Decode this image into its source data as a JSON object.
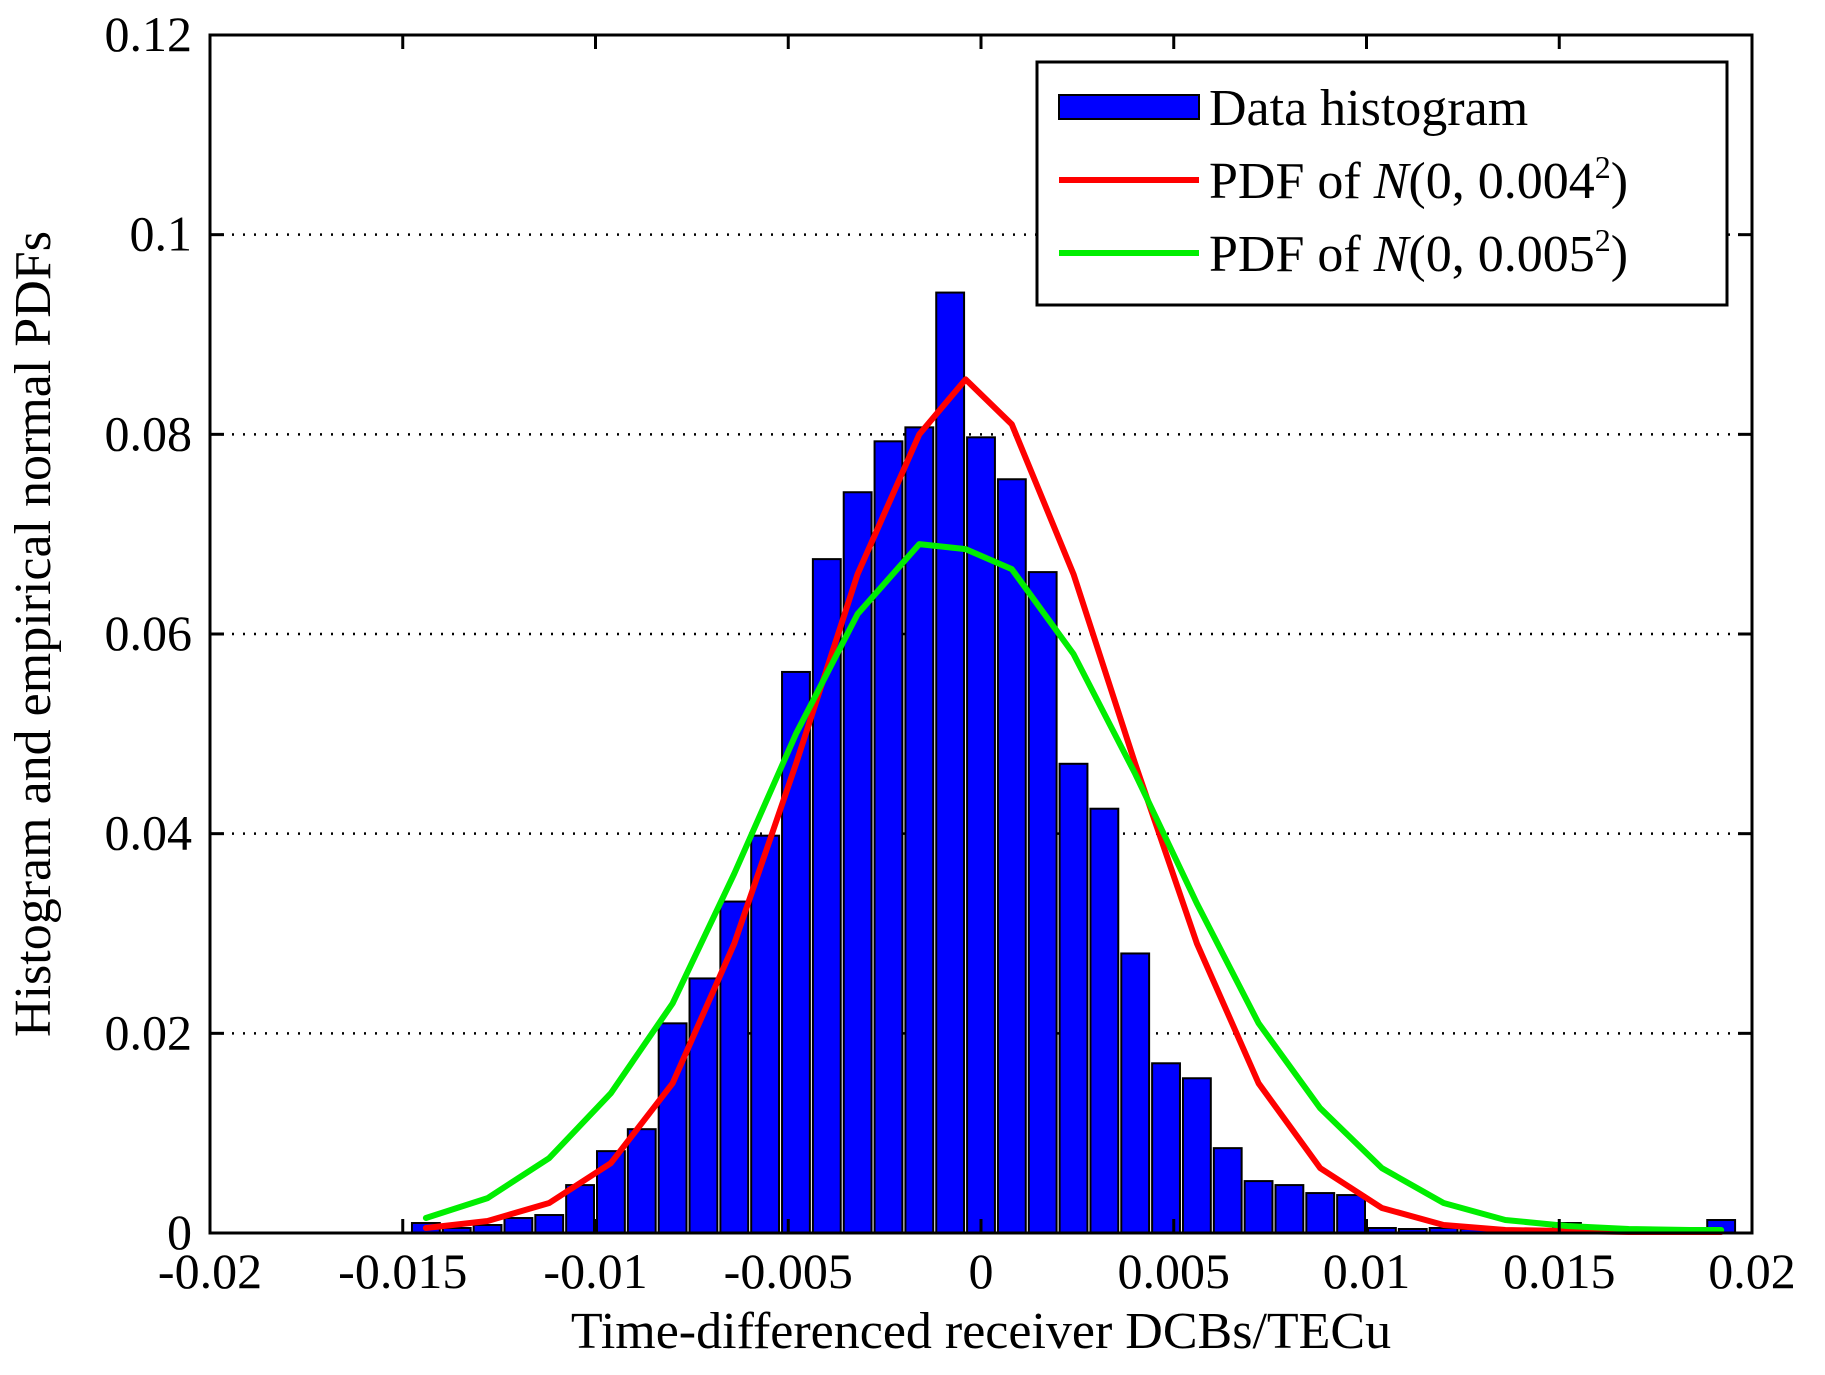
{
  "chart_data": {
    "type": "bar",
    "title": "",
    "xlabel": "Time-differenced receiver DCBs/TECu",
    "ylabel": "Histogram and empirical normal PDFs",
    "xlim": [
      -0.02,
      0.02
    ],
    "ylim": [
      0,
      0.12
    ],
    "xticks": [
      "-0.02",
      "-0.015",
      "-0.01",
      "-0.005",
      "0",
      "0.005",
      "0.01",
      "0.015",
      "0.02"
    ],
    "yticks": [
      "0",
      "0.02",
      "0.04",
      "0.06",
      "0.08",
      "0.1",
      "0.12"
    ],
    "grid": "y-dotted",
    "legend_position": "top-right",
    "histogram": {
      "name": "Data histogram",
      "color": "#0000ff",
      "edge_color": "#000000",
      "bin_width": 0.0008,
      "bin_centers": [
        -0.0144,
        -0.0136,
        -0.0128,
        -0.012,
        -0.0112,
        -0.0104,
        -0.0096,
        -0.0088,
        -0.008,
        -0.0072,
        -0.0064,
        -0.0056,
        -0.0048,
        -0.004,
        -0.0032,
        -0.0024,
        -0.0016,
        -0.0008,
        0.0,
        0.0008,
        0.0016,
        0.0024,
        0.0032,
        0.004,
        0.0048,
        0.0056,
        0.0064,
        0.0072,
        0.008,
        0.0088,
        0.0096,
        0.0104,
        0.0112,
        0.012,
        0.0128,
        0.0136,
        0.0144,
        0.0152,
        0.016,
        0.0168,
        0.0176,
        0.0184,
        0.0192
      ],
      "values": [
        0.001,
        0.0005,
        0.0008,
        0.0015,
        0.0018,
        0.0048,
        0.0082,
        0.0104,
        0.021,
        0.0255,
        0.0332,
        0.0398,
        0.0562,
        0.0675,
        0.0742,
        0.0793,
        0.0807,
        0.0942,
        0.0797,
        0.0755,
        0.0662,
        0.047,
        0.0425,
        0.028,
        0.017,
        0.0155,
        0.0085,
        0.0052,
        0.0048,
        0.004,
        0.0038,
        0.0005,
        0.0004,
        0.0005,
        0.0004,
        0.0004,
        0.0003,
        0.001,
        0.0005,
        0.0003,
        0.0003,
        0.0003,
        0.0013
      ]
    },
    "series": [
      {
        "legend_prefix": "PDF of ",
        "legend_italic": "N",
        "legend_mid": "(0, 0.004",
        "legend_sup": "2",
        "legend_suffix": ")",
        "color": "#ff0000",
        "x": [
          -0.0144,
          -0.0128,
          -0.0112,
          -0.0096,
          -0.008,
          -0.0064,
          -0.0048,
          -0.0032,
          -0.0016,
          -0.0004,
          0.0008,
          0.0024,
          0.004,
          0.0056,
          0.0072,
          0.0088,
          0.0104,
          0.012,
          0.0136,
          0.0152,
          0.0168,
          0.0184,
          0.0192
        ],
        "values": [
          0.0005,
          0.0012,
          0.003,
          0.007,
          0.015,
          0.029,
          0.047,
          0.066,
          0.08,
          0.0855,
          0.081,
          0.066,
          0.047,
          0.029,
          0.015,
          0.0065,
          0.0025,
          0.0008,
          0.0003,
          0.0002,
          0.0001,
          0.0001,
          0.0001
        ]
      },
      {
        "legend_prefix": "PDF of ",
        "legend_italic": "N",
        "legend_mid": "(0, 0.005",
        "legend_sup": "2",
        "legend_suffix": ")",
        "color": "#00ee00",
        "x": [
          -0.0144,
          -0.0128,
          -0.0112,
          -0.0096,
          -0.008,
          -0.0064,
          -0.0048,
          -0.0032,
          -0.0016,
          -0.0004,
          0.0008,
          0.0024,
          0.004,
          0.0056,
          0.0072,
          0.0088,
          0.0104,
          0.012,
          0.0136,
          0.0152,
          0.0168,
          0.0184,
          0.0192
        ],
        "values": [
          0.0015,
          0.0035,
          0.0075,
          0.014,
          0.023,
          0.036,
          0.05,
          0.062,
          0.069,
          0.0685,
          0.0665,
          0.058,
          0.046,
          0.033,
          0.021,
          0.0125,
          0.0065,
          0.003,
          0.0013,
          0.0007,
          0.0004,
          0.0003,
          0.0003
        ]
      }
    ]
  }
}
